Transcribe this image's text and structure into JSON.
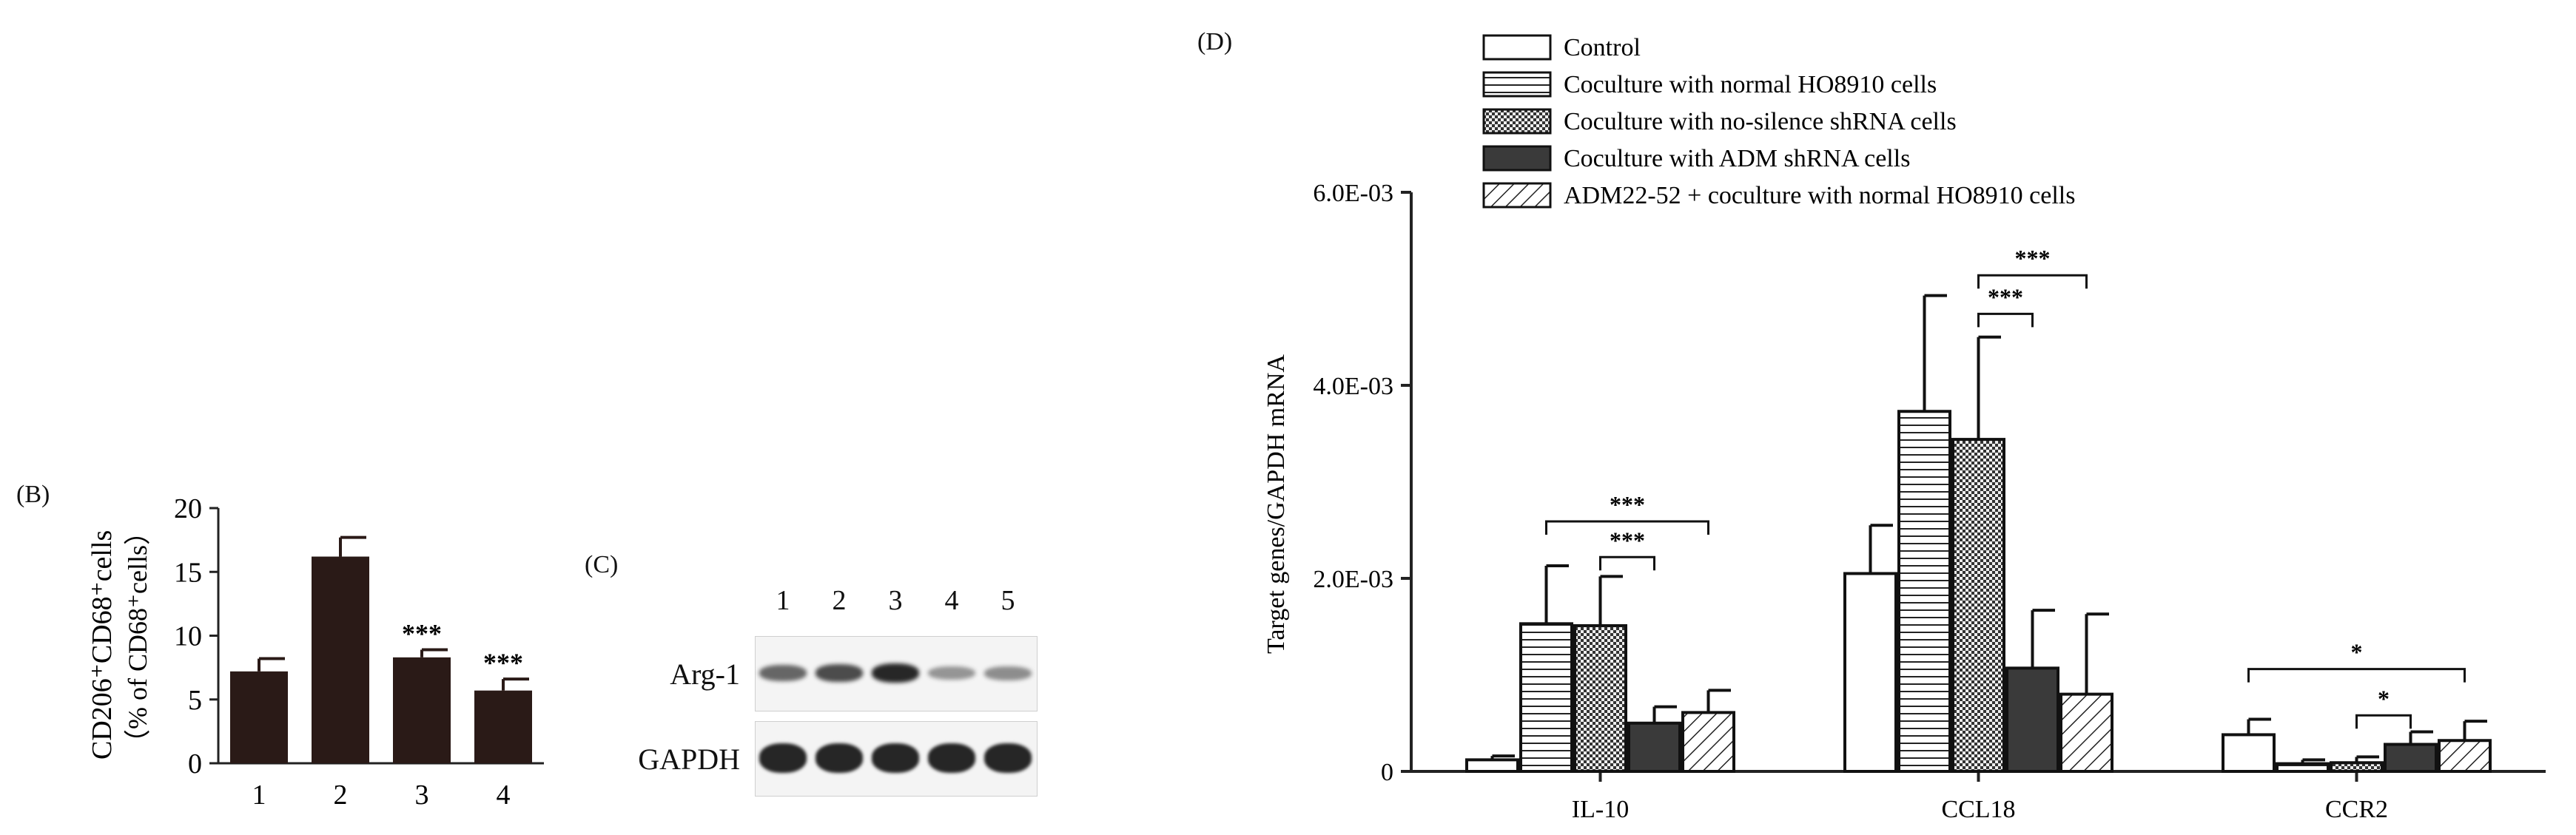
{
  "panels": {
    "B": {
      "letter": "(B)",
      "chart_data": {
        "type": "bar",
        "categories": [
          "1",
          "2",
          "3",
          "4"
        ],
        "values": [
          7.2,
          16.2,
          8.3,
          5.7
        ],
        "errors": [
          1.0,
          1.5,
          0.6,
          0.9
        ],
        "significance": [
          "",
          "",
          "***",
          "***"
        ],
        "ylabel_main": "CD206⁺CD68⁺cells",
        "ylabel_sub": "（% of CD68⁺cells）",
        "xlabel": "",
        "yticks": [
          "0",
          "5",
          "10",
          "15",
          "20"
        ],
        "ylim": [
          0,
          20
        ],
        "bar_color": "#2a1a17"
      }
    },
    "C": {
      "letter": "(C)",
      "lanes": [
        "1",
        "2",
        "3",
        "4",
        "5"
      ],
      "rows": [
        {
          "label": "Arg-1",
          "intensities": [
            0.55,
            0.72,
            0.95,
            0.25,
            0.3
          ]
        },
        {
          "label": "GAPDH",
          "intensities": [
            1,
            1,
            1,
            1,
            1
          ]
        }
      ]
    },
    "D": {
      "letter": "(D)",
      "chart_data": {
        "type": "bar",
        "categories": [
          "IL-10",
          "CCL18",
          "CCR2"
        ],
        "series": [
          {
            "name": "Control",
            "pattern": "white",
            "values": [
              0.00012,
              0.00205,
              0.00038
            ],
            "errors": [
              4e-05,
              0.0005,
              0.00016
            ]
          },
          {
            "name": "Coculture with normal HO8910 cells",
            "pattern": "hlines",
            "values": [
              0.00153,
              0.00373,
              8e-05
            ],
            "errors": [
              0.0006,
              0.0012,
              4e-05
            ]
          },
          {
            "name": "Coculture with no-silence shRNA cells",
            "pattern": "checker",
            "values": [
              0.00151,
              0.00344,
              9e-05
            ],
            "errors": [
              0.00051,
              0.00106,
              6e-05
            ]
          },
          {
            "name": "Coculture with ADM shRNA cells",
            "pattern": "dark",
            "values": [
              0.0005,
              0.00107,
              0.00028
            ],
            "errors": [
              0.00017,
              0.0006,
              0.00013
            ]
          },
          {
            "name": "ADM22-52 + coculture with normal HO8910 cells",
            "pattern": "diag",
            "values": [
              0.00061,
              0.0008,
              0.00032
            ],
            "errors": [
              0.00023,
              0.00083,
              0.0002
            ]
          }
        ],
        "ylabel": "Target genes/GAPDH mRNA",
        "xlabel": "",
        "yticks": [
          "0",
          "2.0E-03",
          "4.0E-03",
          "6.0E-03"
        ],
        "ylim": [
          0,
          0.006
        ],
        "legend_position": "top",
        "brackets": [
          {
            "group": 0,
            "from": 1,
            "to": 4,
            "level": 0.00259,
            "label": "***"
          },
          {
            "group": 0,
            "from": 2,
            "to": 3,
            "level": 0.00222,
            "label": "***"
          },
          {
            "group": 1,
            "from": 2,
            "to": 4,
            "level": 0.00514,
            "label": "***"
          },
          {
            "group": 1,
            "from": 2,
            "to": 3,
            "level": 0.00474,
            "label": "***"
          },
          {
            "group": 2,
            "from": 0,
            "to": 4,
            "level": 0.00106,
            "label": "*"
          },
          {
            "group": 2,
            "from": 2,
            "to": 3,
            "level": 0.00058,
            "label": "*"
          }
        ]
      }
    }
  }
}
